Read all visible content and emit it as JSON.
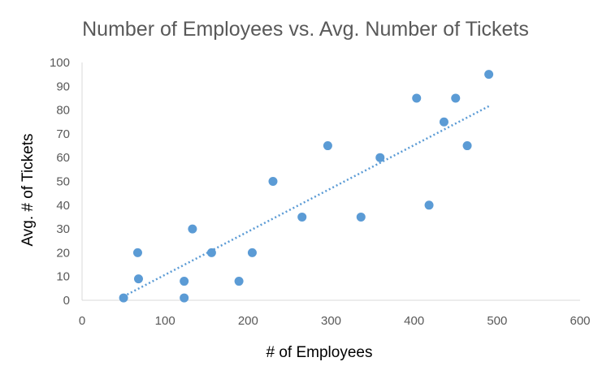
{
  "chart_data": {
    "type": "scatter",
    "title": "Number of Employees vs. Avg. Number of Tickets",
    "xlabel": "# of Employees",
    "ylabel": "Avg. # of Tickets",
    "xlim": [
      0,
      600
    ],
    "ylim": [
      0,
      100
    ],
    "x_ticks": [
      0,
      100,
      200,
      300,
      400,
      500,
      600
    ],
    "y_ticks": [
      0,
      10,
      20,
      30,
      40,
      50,
      60,
      70,
      80,
      90,
      100
    ],
    "grid": false,
    "legend": "none",
    "trendline": {
      "type": "linear",
      "style": "dotted",
      "x_start": 50,
      "x_end": 490
    },
    "colors": {
      "points": "#5B9BD5",
      "trendline": "#5B9BD5",
      "axis": "#D9D9D9",
      "title": "#595959",
      "ticks": "#595959"
    },
    "series": [
      {
        "points": [
          {
            "x": 50,
            "y": 1
          },
          {
            "x": 67,
            "y": 20
          },
          {
            "x": 68,
            "y": 9
          },
          {
            "x": 123,
            "y": 8
          },
          {
            "x": 123,
            "y": 1
          },
          {
            "x": 133,
            "y": 30
          },
          {
            "x": 156,
            "y": 20
          },
          {
            "x": 189,
            "y": 8
          },
          {
            "x": 205,
            "y": 20
          },
          {
            "x": 230,
            "y": 50
          },
          {
            "x": 265,
            "y": 35
          },
          {
            "x": 296,
            "y": 65
          },
          {
            "x": 336,
            "y": 35
          },
          {
            "x": 359,
            "y": 60
          },
          {
            "x": 403,
            "y": 85
          },
          {
            "x": 418,
            "y": 40
          },
          {
            "x": 436,
            "y": 75
          },
          {
            "x": 450,
            "y": 85
          },
          {
            "x": 464,
            "y": 65
          },
          {
            "x": 490,
            "y": 95
          }
        ]
      }
    ]
  }
}
